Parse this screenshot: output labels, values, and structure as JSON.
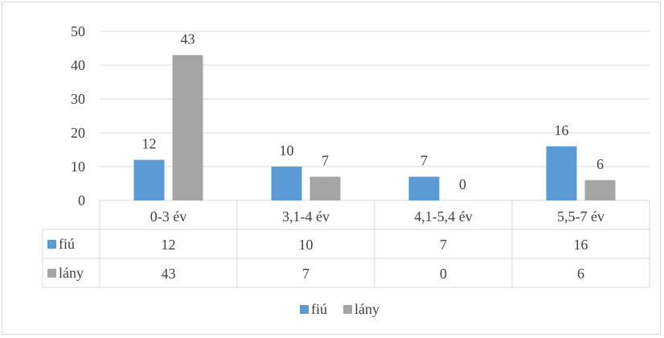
{
  "chart_data": {
    "type": "bar",
    "categories": [
      "0-3 év",
      "3,1-4 év",
      "4,1-5,4 év",
      "5,5-7 év"
    ],
    "series": [
      {
        "name": "fiú",
        "values": [
          12,
          10,
          7,
          16
        ],
        "color": "#5b9bd5"
      },
      {
        "name": "lány",
        "values": [
          43,
          7,
          0,
          6
        ],
        "color": "#a5a5a5"
      }
    ],
    "ylim": [
      0,
      50
    ],
    "yticks": [
      "0",
      "10",
      "20",
      "30",
      "40",
      "50"
    ],
    "grid": true,
    "data_table": true,
    "legend": "bottom"
  },
  "colors": {
    "grid": "#d9d9d9",
    "text": "#404040"
  }
}
